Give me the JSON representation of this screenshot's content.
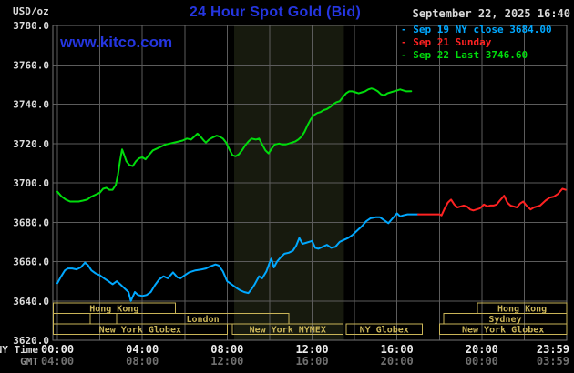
{
  "header": {
    "unit_label": "USD/oz",
    "title": "24 Hour Spot Gold (Bid)",
    "watermark": "www.kitco.com",
    "datetime": "September 22, 2025 16:40",
    "accent_color": "#2536e0"
  },
  "legend": [
    {
      "label": "- Sep 19 NY close 3684.00",
      "color": "#00a8ff"
    },
    {
      "label": "- Sep 21 Sunday",
      "color": "#ff2222"
    },
    {
      "label": "- Sep 22 Last 3746.60",
      "color": "#00dc0c"
    }
  ],
  "chart_data": {
    "type": "line",
    "title": "24 Hour Spot Gold (Bid)",
    "ylabel": "USD/oz",
    "ylim": [
      3620,
      3780
    ],
    "ytick_step": 20,
    "x_hours_range": [
      0,
      24
    ],
    "grid": true,
    "colors": {
      "grid": "#5c5c5c",
      "border": "#747474",
      "session_box": "#c9b458",
      "shade": "#171a0e"
    },
    "axis_rows": {
      "ny": "NY Time",
      "gmt": "GMT"
    },
    "xticks": {
      "hours": [
        0,
        4,
        8,
        12,
        16,
        20,
        23.983
      ],
      "ny": [
        "00:00",
        "04:00",
        "08:00",
        "12:00",
        "16:00",
        "20:00",
        "23:59"
      ],
      "gmt": [
        "04:00",
        "08:00",
        "12:00",
        "16:00",
        "20:00",
        "00:00",
        "03:59"
      ]
    },
    "shaded_session": {
      "start_hour": 8.33,
      "end_hour": 13.5
    },
    "sessions": [
      {
        "row": 0,
        "label": "Hong Kong",
        "start": -0.2,
        "end": 5.55
      },
      {
        "row": 0,
        "label": "Hong Kong",
        "start": 19.8,
        "end": 24
      },
      {
        "row": 1,
        "label": "",
        "start": -0.2,
        "end": 1.55
      },
      {
        "row": 1,
        "label": "London",
        "start": 2.8,
        "end": 10.9
      },
      {
        "row": 1,
        "label": "Sydney",
        "start": 18.2,
        "end": 24
      },
      {
        "row": 2,
        "label": "New York Globex",
        "start": -0.2,
        "end": 8.0
      },
      {
        "row": 2,
        "label": "New York NYMEX",
        "start": 8.25,
        "end": 13.45
      },
      {
        "row": 2,
        "label": "NY Globex",
        "start": 13.6,
        "end": 17.2
      },
      {
        "row": 2,
        "label": "New York Globex",
        "start": 18.0,
        "end": 24
      }
    ],
    "series": [
      {
        "name": "Sep 19 NY close",
        "color": "#00a8ff",
        "close_value": 3684.0,
        "points": [
          [
            0,
            3649
          ],
          [
            0.15,
            3652
          ],
          [
            0.35,
            3655.5
          ],
          [
            0.5,
            3656.5
          ],
          [
            0.7,
            3656.5
          ],
          [
            0.9,
            3656
          ],
          [
            1.1,
            3657
          ],
          [
            1.3,
            3659.5
          ],
          [
            1.45,
            3658
          ],
          [
            1.6,
            3655.5
          ],
          [
            1.8,
            3654
          ],
          [
            2.0,
            3653
          ],
          [
            2.2,
            3651.5
          ],
          [
            2.4,
            3650
          ],
          [
            2.6,
            3648.5
          ],
          [
            2.8,
            3650
          ],
          [
            3.0,
            3648
          ],
          [
            3.2,
            3646
          ],
          [
            3.35,
            3644.5
          ],
          [
            3.46,
            3640
          ],
          [
            3.65,
            3644.5
          ],
          [
            3.8,
            3643
          ],
          [
            4.0,
            3642.5
          ],
          [
            4.2,
            3643
          ],
          [
            4.4,
            3644.5
          ],
          [
            4.6,
            3648
          ],
          [
            4.8,
            3651
          ],
          [
            5.0,
            3652.5
          ],
          [
            5.2,
            3651.5
          ],
          [
            5.45,
            3654.5
          ],
          [
            5.65,
            3652
          ],
          [
            5.8,
            3651.5
          ],
          [
            6.0,
            3653
          ],
          [
            6.2,
            3654.5
          ],
          [
            6.5,
            3655.5
          ],
          [
            6.8,
            3656
          ],
          [
            7.0,
            3656.5
          ],
          [
            7.2,
            3657.5
          ],
          [
            7.45,
            3658.5
          ],
          [
            7.6,
            3658
          ],
          [
            7.8,
            3655
          ],
          [
            8.0,
            3650
          ],
          [
            8.2,
            3648.5
          ],
          [
            8.45,
            3646.5
          ],
          [
            8.6,
            3645.5
          ],
          [
            8.8,
            3644.5
          ],
          [
            9.0,
            3644
          ],
          [
            9.15,
            3646
          ],
          [
            9.3,
            3648.5
          ],
          [
            9.5,
            3652.5
          ],
          [
            9.65,
            3651.5
          ],
          [
            9.85,
            3655
          ],
          [
            10.0,
            3659.5
          ],
          [
            10.08,
            3661.5
          ],
          [
            10.2,
            3657
          ],
          [
            10.35,
            3660
          ],
          [
            10.55,
            3662.5
          ],
          [
            10.7,
            3664
          ],
          [
            10.9,
            3664.5
          ],
          [
            11.1,
            3665.5
          ],
          [
            11.25,
            3668
          ],
          [
            11.4,
            3672
          ],
          [
            11.55,
            3669
          ],
          [
            11.7,
            3669.5
          ],
          [
            11.85,
            3670
          ],
          [
            12.0,
            3670.5
          ],
          [
            12.15,
            3667
          ],
          [
            12.3,
            3666.5
          ],
          [
            12.5,
            3667.5
          ],
          [
            12.7,
            3668.5
          ],
          [
            12.9,
            3667
          ],
          [
            13.1,
            3667.5
          ],
          [
            13.3,
            3670
          ],
          [
            13.5,
            3671
          ],
          [
            13.7,
            3672
          ],
          [
            13.9,
            3673.5
          ],
          [
            14.1,
            3675.5
          ],
          [
            14.35,
            3678
          ],
          [
            14.55,
            3680.5
          ],
          [
            14.75,
            3682
          ],
          [
            15.0,
            3682.5
          ],
          [
            15.2,
            3682.5
          ],
          [
            15.4,
            3681
          ],
          [
            15.6,
            3679.5
          ],
          [
            15.8,
            3682
          ],
          [
            16.0,
            3684.5
          ],
          [
            16.15,
            3683
          ],
          [
            16.3,
            3683.5
          ],
          [
            16.5,
            3684
          ],
          [
            16.75,
            3684
          ],
          [
            17.0,
            3684
          ]
        ]
      },
      {
        "name": "Sep 21 Sunday",
        "color": "#ff2222",
        "points": [
          [
            17.0,
            3684
          ],
          [
            18.0,
            3684
          ],
          [
            18.1,
            3683.5
          ],
          [
            18.25,
            3687
          ],
          [
            18.4,
            3690
          ],
          [
            18.55,
            3691.5
          ],
          [
            18.7,
            3689
          ],
          [
            18.85,
            3687.5
          ],
          [
            19.0,
            3688
          ],
          [
            19.15,
            3688.5
          ],
          [
            19.3,
            3688
          ],
          [
            19.45,
            3686.5
          ],
          [
            19.6,
            3686
          ],
          [
            19.75,
            3686.5
          ],
          [
            19.9,
            3687
          ],
          [
            20.1,
            3689
          ],
          [
            20.25,
            3688
          ],
          [
            20.4,
            3688.5
          ],
          [
            20.55,
            3688.5
          ],
          [
            20.7,
            3689
          ],
          [
            20.85,
            3691
          ],
          [
            21.05,
            3693.5
          ],
          [
            21.2,
            3690
          ],
          [
            21.35,
            3688.5
          ],
          [
            21.5,
            3688
          ],
          [
            21.65,
            3687.5
          ],
          [
            21.8,
            3689.5
          ],
          [
            21.95,
            3690.5
          ],
          [
            22.1,
            3688.5
          ],
          [
            22.3,
            3686.5
          ],
          [
            22.45,
            3687.5
          ],
          [
            22.6,
            3688
          ],
          [
            22.75,
            3688.5
          ],
          [
            23.0,
            3691
          ],
          [
            23.2,
            3692.5
          ],
          [
            23.4,
            3693
          ],
          [
            23.6,
            3694.5
          ],
          [
            23.8,
            3697
          ],
          [
            23.95,
            3696.5
          ]
        ]
      },
      {
        "name": "Sep 22 Last",
        "color": "#00dc0c",
        "last_value": 3746.6,
        "points": [
          [
            0,
            3695.5
          ],
          [
            0.2,
            3693
          ],
          [
            0.4,
            3691.5
          ],
          [
            0.6,
            3690.5
          ],
          [
            0.8,
            3690.5
          ],
          [
            1.0,
            3690.5
          ],
          [
            1.2,
            3691
          ],
          [
            1.4,
            3691.5
          ],
          [
            1.6,
            3693
          ],
          [
            1.8,
            3694
          ],
          [
            2.0,
            3695
          ],
          [
            2.15,
            3697
          ],
          [
            2.3,
            3697.5
          ],
          [
            2.45,
            3696.5
          ],
          [
            2.6,
            3696.5
          ],
          [
            2.75,
            3699
          ],
          [
            2.85,
            3704
          ],
          [
            2.95,
            3711
          ],
          [
            3.05,
            3717
          ],
          [
            3.15,
            3714
          ],
          [
            3.25,
            3711
          ],
          [
            3.4,
            3709
          ],
          [
            3.55,
            3708.5
          ],
          [
            3.7,
            3711
          ],
          [
            3.85,
            3712.5
          ],
          [
            4.0,
            3713
          ],
          [
            4.15,
            3712
          ],
          [
            4.3,
            3714
          ],
          [
            4.5,
            3716.5
          ],
          [
            4.7,
            3717.5
          ],
          [
            4.9,
            3718.5
          ],
          [
            5.1,
            3719.5
          ],
          [
            5.3,
            3720
          ],
          [
            5.5,
            3720.5
          ],
          [
            5.7,
            3721
          ],
          [
            5.9,
            3721.5
          ],
          [
            6.1,
            3722.5
          ],
          [
            6.3,
            3722
          ],
          [
            6.5,
            3724
          ],
          [
            6.6,
            3725
          ],
          [
            6.75,
            3723.5
          ],
          [
            6.9,
            3721.5
          ],
          [
            7.0,
            3720.5
          ],
          [
            7.15,
            3722
          ],
          [
            7.3,
            3723
          ],
          [
            7.5,
            3724
          ],
          [
            7.65,
            3723.5
          ],
          [
            7.8,
            3722.5
          ],
          [
            7.95,
            3720.5
          ],
          [
            8.1,
            3717
          ],
          [
            8.25,
            3714
          ],
          [
            8.4,
            3713.5
          ],
          [
            8.55,
            3714.5
          ],
          [
            8.7,
            3716.5
          ],
          [
            8.85,
            3719
          ],
          [
            9.0,
            3721
          ],
          [
            9.15,
            3722.5
          ],
          [
            9.35,
            3722
          ],
          [
            9.5,
            3722.5
          ],
          [
            9.65,
            3719.5
          ],
          [
            9.8,
            3716.5
          ],
          [
            9.95,
            3715
          ],
          [
            10.1,
            3717.5
          ],
          [
            10.25,
            3719.5
          ],
          [
            10.45,
            3720
          ],
          [
            10.6,
            3719.5
          ],
          [
            10.75,
            3719.5
          ],
          [
            10.9,
            3720
          ],
          [
            11.05,
            3720.5
          ],
          [
            11.2,
            3721
          ],
          [
            11.35,
            3722
          ],
          [
            11.5,
            3723.5
          ],
          [
            11.65,
            3726
          ],
          [
            11.8,
            3729.5
          ],
          [
            11.95,
            3732.5
          ],
          [
            12.1,
            3734.5
          ],
          [
            12.25,
            3735.5
          ],
          [
            12.4,
            3736
          ],
          [
            12.55,
            3737
          ],
          [
            12.7,
            3737.5
          ],
          [
            12.85,
            3738.5
          ],
          [
            13.0,
            3740
          ],
          [
            13.15,
            3741
          ],
          [
            13.3,
            3741.5
          ],
          [
            13.45,
            3743.5
          ],
          [
            13.6,
            3745.5
          ],
          [
            13.75,
            3746.5
          ],
          [
            13.9,
            3746.5
          ],
          [
            14.05,
            3746
          ],
          [
            14.2,
            3745.5
          ],
          [
            14.35,
            3746
          ],
          [
            14.5,
            3746.5
          ],
          [
            14.65,
            3747.5
          ],
          [
            14.8,
            3748
          ],
          [
            14.95,
            3747.5
          ],
          [
            15.1,
            3746.5
          ],
          [
            15.25,
            3745
          ],
          [
            15.4,
            3744.5
          ],
          [
            15.55,
            3745.5
          ],
          [
            15.7,
            3746
          ],
          [
            15.85,
            3746.5
          ],
          [
            16.0,
            3747
          ],
          [
            16.15,
            3747.5
          ],
          [
            16.3,
            3747
          ],
          [
            16.45,
            3746.5
          ],
          [
            16.67,
            3746.6
          ]
        ]
      }
    ]
  }
}
